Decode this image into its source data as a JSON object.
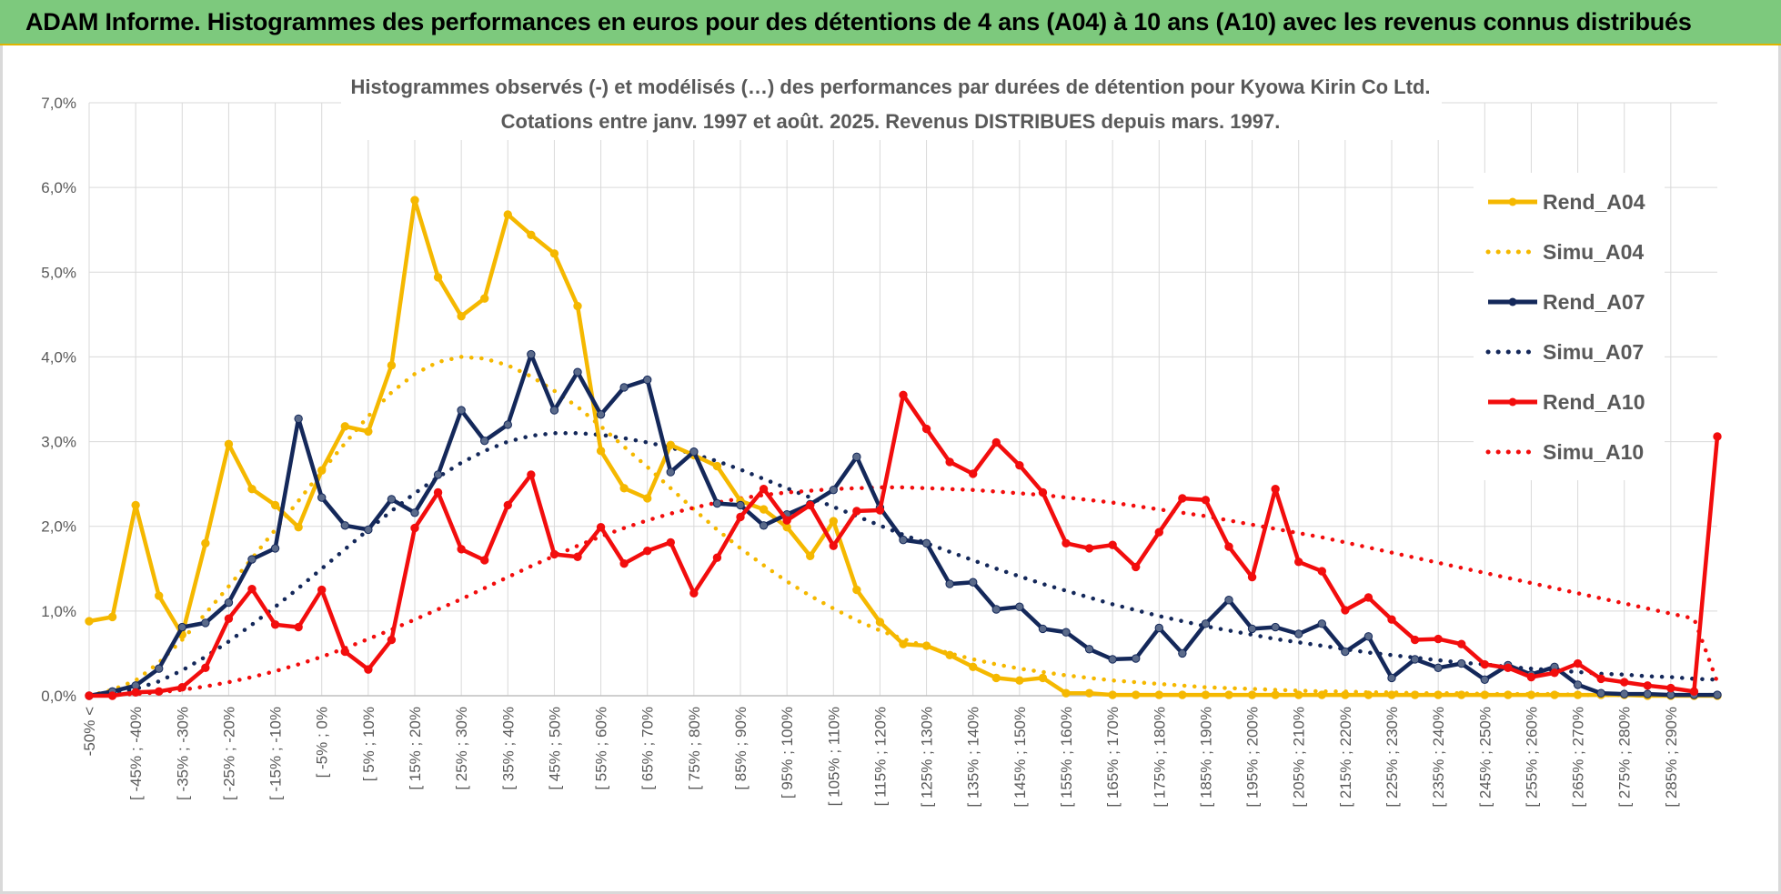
{
  "header": {
    "title": "ADAM Informe. Histogrammes des performances en euros pour des détentions de 4 ans (A04) à 10 ans (A10) avec les revenus connus distribués"
  },
  "chart_data": {
    "type": "line",
    "title_lines": [
      "Histogrammes observés (-) et modélisés (…) des performances par durées de détention pour Kyowa Kirin Co Ltd.",
      "Cotations entre janv. 1997 et août. 2025. Revenus DISTRIBUES depuis mars. 1997."
    ],
    "ylim": [
      0,
      7
    ],
    "y_ticks": [
      "0,0%",
      "1,0%",
      "2,0%",
      "3,0%",
      "4,0%",
      "5,0%",
      "6,0%",
      "7,0%"
    ],
    "x_tick_labels": [
      "-50% <",
      "[ -45% ; -40%",
      "[ -35% ; -30%",
      "[ -25% ; -20%",
      "[ -15% ; -10%",
      "[ -5% ; 0%",
      "[ 5% ; 10%",
      "[ 15% ; 20%",
      "[ 25% ; 30%",
      "[ 35% ; 40%",
      "[ 45% ; 50%",
      "[ 55% ; 60%",
      "[ 65% ; 70%",
      "[ 75% ; 80%",
      "[ 85% ; 90%",
      "[ 95% ; 100%",
      "[ 105% ; 110%",
      "[ 115% ; 120%",
      "[ 125% ; 130%",
      "[ 135% ; 140%",
      "[ 145% ; 150%",
      "[ 155% ; 160%",
      "[ 165% ; 170%",
      "[ 175% ; 180%",
      "[ 185% ; 190%",
      "[ 195% ; 200%",
      "[ 205% ; 210%",
      "[ 215% ; 220%",
      "[ 225% ; 230%",
      "[ 235% ; 240%",
      "[ 245% ; 250%",
      "[ 255% ; 260%",
      "[ 265% ; 270%",
      "[ 275% ; 280%",
      "[ 285% ; 290%"
    ],
    "legend_position": "right",
    "grid": true,
    "series": [
      {
        "name": "Rend_A04",
        "style": "solid",
        "color": "#f5b800",
        "values": [
          0.88,
          0.93,
          2.25,
          1.18,
          0.72,
          1.8,
          2.97,
          2.44,
          2.25,
          1.99,
          2.66,
          3.18,
          3.12,
          3.9,
          5.85,
          4.94,
          4.48,
          4.69,
          5.68,
          5.44,
          5.22,
          4.6,
          2.89,
          2.45,
          2.33,
          2.96,
          2.84,
          2.71,
          2.3,
          2.2,
          1.99,
          1.65,
          2.06,
          1.25,
          0.87,
          0.61,
          0.59,
          0.48,
          0.34,
          0.21,
          0.18,
          0.21,
          0.03,
          0.03,
          0.01,
          0.01,
          0.01,
          0.01,
          0.01,
          0.01,
          0.01,
          0.01,
          0.01,
          0.01,
          0.01,
          0.01,
          0.01,
          0.01,
          0.01,
          0.01,
          0.01,
          0.01,
          0.01,
          0.01,
          0.01,
          0.01,
          0.01,
          0.0,
          0.0,
          0.0,
          0.0
        ]
      },
      {
        "name": "Simu_A04",
        "style": "dotted",
        "color": "#f5b800",
        "values": [
          0.0,
          0.07,
          0.18,
          0.39,
          0.66,
          0.97,
          1.29,
          1.62,
          1.96,
          2.3,
          2.65,
          2.98,
          3.3,
          3.58,
          3.8,
          3.94,
          4.0,
          3.98,
          3.9,
          3.77,
          3.6,
          3.41,
          3.18,
          2.94,
          2.7,
          2.45,
          2.2,
          1.96,
          1.74,
          1.54,
          1.35,
          1.18,
          1.03,
          0.89,
          0.77,
          0.67,
          0.58,
          0.5,
          0.43,
          0.37,
          0.32,
          0.28,
          0.24,
          0.21,
          0.18,
          0.16,
          0.14,
          0.12,
          0.1,
          0.09,
          0.08,
          0.07,
          0.06,
          0.05,
          0.05,
          0.04,
          0.04,
          0.03,
          0.03,
          0.03,
          0.02,
          0.02,
          0.02,
          0.02,
          0.01,
          0.01,
          0.01,
          0.01,
          0.01,
          0.01,
          0.01
        ]
      },
      {
        "name": "Rend_A07",
        "style": "solid",
        "color": "#14285a",
        "values": [
          0.0,
          0.05,
          0.12,
          0.32,
          0.81,
          0.86,
          1.1,
          1.61,
          1.74,
          3.27,
          2.34,
          2.01,
          1.96,
          2.32,
          2.16,
          2.61,
          3.37,
          3.01,
          3.2,
          4.03,
          3.37,
          3.82,
          3.32,
          3.64,
          3.73,
          2.64,
          2.88,
          2.27,
          2.25,
          2.01,
          2.14,
          2.26,
          2.43,
          2.82,
          2.22,
          1.84,
          1.8,
          1.32,
          1.34,
          1.02,
          1.05,
          0.79,
          0.75,
          0.55,
          0.43,
          0.44,
          0.8,
          0.5,
          0.85,
          1.13,
          0.79,
          0.81,
          0.73,
          0.85,
          0.52,
          0.7,
          0.21,
          0.43,
          0.33,
          0.38,
          0.19,
          0.36,
          0.25,
          0.34,
          0.13,
          0.03,
          0.02,
          0.02,
          0.01,
          0.01,
          0.01
        ]
      },
      {
        "name": "Simu_A07",
        "style": "dotted",
        "color": "#14285a",
        "values": [
          0.0,
          0.03,
          0.08,
          0.17,
          0.3,
          0.46,
          0.64,
          0.84,
          1.05,
          1.27,
          1.5,
          1.73,
          1.96,
          2.18,
          2.39,
          2.58,
          2.75,
          2.89,
          3.0,
          3.07,
          3.1,
          3.1,
          3.08,
          3.04,
          2.99,
          2.93,
          2.85,
          2.77,
          2.67,
          2.56,
          2.45,
          2.34,
          2.23,
          2.12,
          2.01,
          1.9,
          1.8,
          1.7,
          1.6,
          1.5,
          1.41,
          1.32,
          1.24,
          1.16,
          1.08,
          1.01,
          0.94,
          0.88,
          0.82,
          0.77,
          0.72,
          0.67,
          0.63,
          0.59,
          0.55,
          0.51,
          0.48,
          0.45,
          0.42,
          0.39,
          0.37,
          0.34,
          0.32,
          0.3,
          0.28,
          0.26,
          0.25,
          0.23,
          0.22,
          0.2,
          0.19
        ]
      },
      {
        "name": "Rend_A10",
        "style": "solid",
        "color": "#f20d0d",
        "values": [
          0.0,
          0.0,
          0.04,
          0.05,
          0.1,
          0.33,
          0.91,
          1.26,
          0.84,
          0.81,
          1.25,
          0.52,
          0.31,
          0.66,
          1.98,
          2.4,
          1.73,
          1.6,
          2.25,
          2.61,
          1.67,
          1.64,
          1.99,
          1.56,
          1.71,
          1.81,
          1.21,
          1.63,
          2.11,
          2.44,
          2.07,
          2.25,
          1.77,
          2.18,
          2.19,
          3.55,
          3.15,
          2.76,
          2.62,
          2.99,
          2.72,
          2.4,
          1.8,
          1.74,
          1.78,
          1.52,
          1.93,
          2.33,
          2.31,
          1.76,
          1.4,
          2.44,
          1.58,
          1.47,
          1.01,
          1.16,
          0.9,
          0.66,
          0.67,
          0.61,
          0.37,
          0.33,
          0.22,
          0.27,
          0.38,
          0.2,
          0.16,
          0.12,
          0.09,
          0.05,
          3.06
        ]
      },
      {
        "name": "Simu_A10",
        "style": "dotted",
        "color": "#f20d0d",
        "values": [
          0.0,
          0.01,
          0.02,
          0.04,
          0.07,
          0.11,
          0.16,
          0.22,
          0.29,
          0.37,
          0.46,
          0.56,
          0.67,
          0.78,
          0.9,
          1.02,
          1.14,
          1.27,
          1.4,
          1.53,
          1.65,
          1.77,
          1.88,
          1.98,
          2.07,
          2.15,
          2.22,
          2.28,
          2.33,
          2.37,
          2.4,
          2.42,
          2.44,
          2.45,
          2.46,
          2.46,
          2.45,
          2.44,
          2.43,
          2.41,
          2.39,
          2.37,
          2.34,
          2.31,
          2.28,
          2.24,
          2.2,
          2.16,
          2.12,
          2.07,
          2.02,
          1.97,
          1.92,
          1.87,
          1.81,
          1.75,
          1.69,
          1.63,
          1.57,
          1.51,
          1.45,
          1.39,
          1.33,
          1.27,
          1.21,
          1.15,
          1.09,
          1.03,
          0.97,
          0.91,
          0.16
        ]
      }
    ]
  }
}
